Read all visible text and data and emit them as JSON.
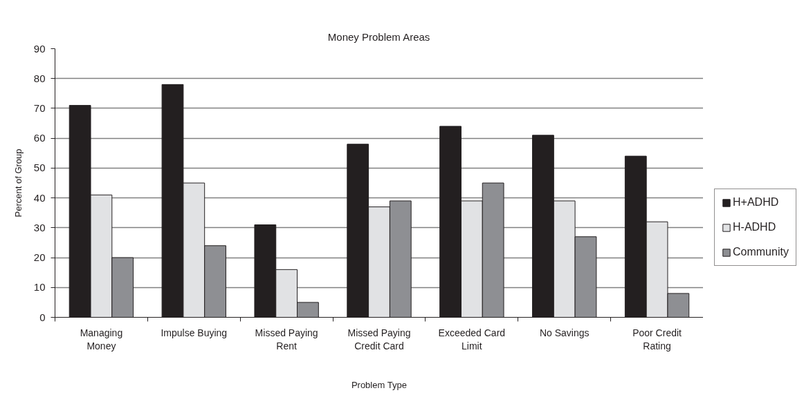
{
  "chart_data": {
    "type": "bar",
    "title": "Money Problem Areas",
    "xlabel": "Problem Type",
    "ylabel": "Percent of Group",
    "categories": [
      "Managing Money",
      "Impulse Buying",
      "Missed Paying Rent",
      "Missed Paying Credit Card",
      "Exceeded Card Limit",
      "No Savings",
      "Poor Credit Rating"
    ],
    "series": [
      {
        "name": "H+ADHD",
        "color": "#231f20",
        "values": [
          71,
          78,
          31,
          58,
          64,
          61,
          54
        ]
      },
      {
        "name": "H-ADHD",
        "color": "#e1e2e4",
        "values": [
          41,
          45,
          16,
          37,
          39,
          39,
          32
        ]
      },
      {
        "name": "Community",
        "color": "#8e8f93",
        "values": [
          20,
          24,
          5,
          39,
          45,
          27,
          8
        ]
      }
    ],
    "ylim": [
      0,
      90
    ],
    "yticks": [
      0,
      10,
      20,
      30,
      40,
      50,
      60,
      70,
      80,
      90
    ],
    "grid": "y",
    "legend": "right"
  }
}
